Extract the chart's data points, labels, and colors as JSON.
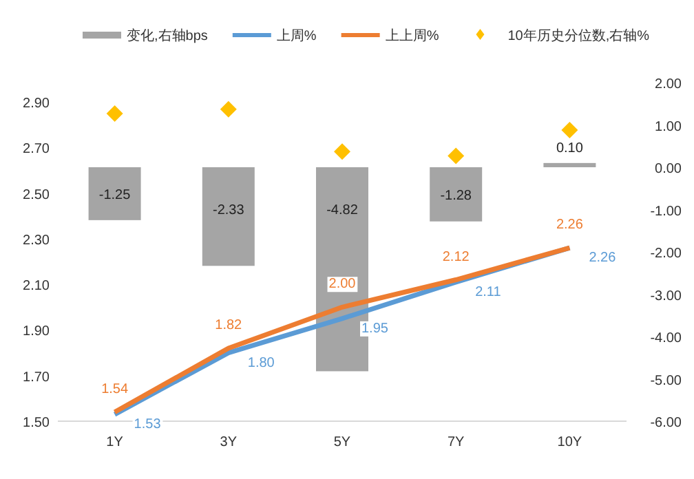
{
  "chart_data": {
    "type": "bar",
    "categories": [
      "1Y",
      "3Y",
      "5Y",
      "7Y",
      "10Y"
    ],
    "series": [
      {
        "name": "变化,右轴bps",
        "axis": "y2",
        "color": "#a5a5a5",
        "values": [
          -1.25,
          -2.33,
          -4.82,
          -1.28,
          0.1
        ],
        "value_labels": [
          "-1.25",
          "-2.33",
          "-4.82",
          "-1.28",
          "0.10"
        ]
      },
      {
        "name": "上周%",
        "type": "line",
        "axis": "y",
        "color": "#5b9bd5",
        "values": [
          1.53,
          1.8,
          1.95,
          2.11,
          2.26
        ],
        "value_labels": [
          "1.53",
          "1.80",
          "1.95",
          "2.11",
          "2.26"
        ]
      },
      {
        "name": "上上周%",
        "type": "line",
        "axis": "y",
        "color": "#ed7d31",
        "values": [
          1.54,
          1.82,
          2.0,
          2.12,
          2.26
        ],
        "value_labels": [
          "1.54",
          "1.82",
          "2.00",
          "2.12",
          "2.26"
        ]
      },
      {
        "name": "10年历史分位数,右轴%",
        "type": "scatter",
        "axis": "y2",
        "color": "#ffc000",
        "marker": "diamond",
        "values": [
          1.27,
          1.37,
          0.37,
          0.27,
          0.88
        ]
      }
    ],
    "ylim": [
      1.5,
      2.9
    ],
    "yticks": [
      {
        "value": 1.5,
        "label": "1.50"
      },
      {
        "value": 1.7,
        "label": "1.70"
      },
      {
        "value": 1.9,
        "label": "1.90"
      },
      {
        "value": 2.1,
        "label": "2.10"
      },
      {
        "value": 2.3,
        "label": "2.30"
      },
      {
        "value": 2.5,
        "label": "2.50"
      },
      {
        "value": 2.7,
        "label": "2.70"
      },
      {
        "value": 2.9,
        "label": "2.90"
      }
    ],
    "y2lim": [
      -6,
      2
    ],
    "y2ticks": [
      {
        "value": -6,
        "label": "-6.00"
      },
      {
        "value": -5,
        "label": "-5.00"
      },
      {
        "value": -4,
        "label": "-4.00"
      },
      {
        "value": -3,
        "label": "-3.00"
      },
      {
        "value": -2,
        "label": "-2.00"
      },
      {
        "value": -1,
        "label": "-1.00"
      },
      {
        "value": 0,
        "label": "0.00"
      },
      {
        "value": 1,
        "label": "1.00"
      },
      {
        "value": 2,
        "label": "2.00"
      }
    ],
    "legend": "top",
    "grid": false
  }
}
